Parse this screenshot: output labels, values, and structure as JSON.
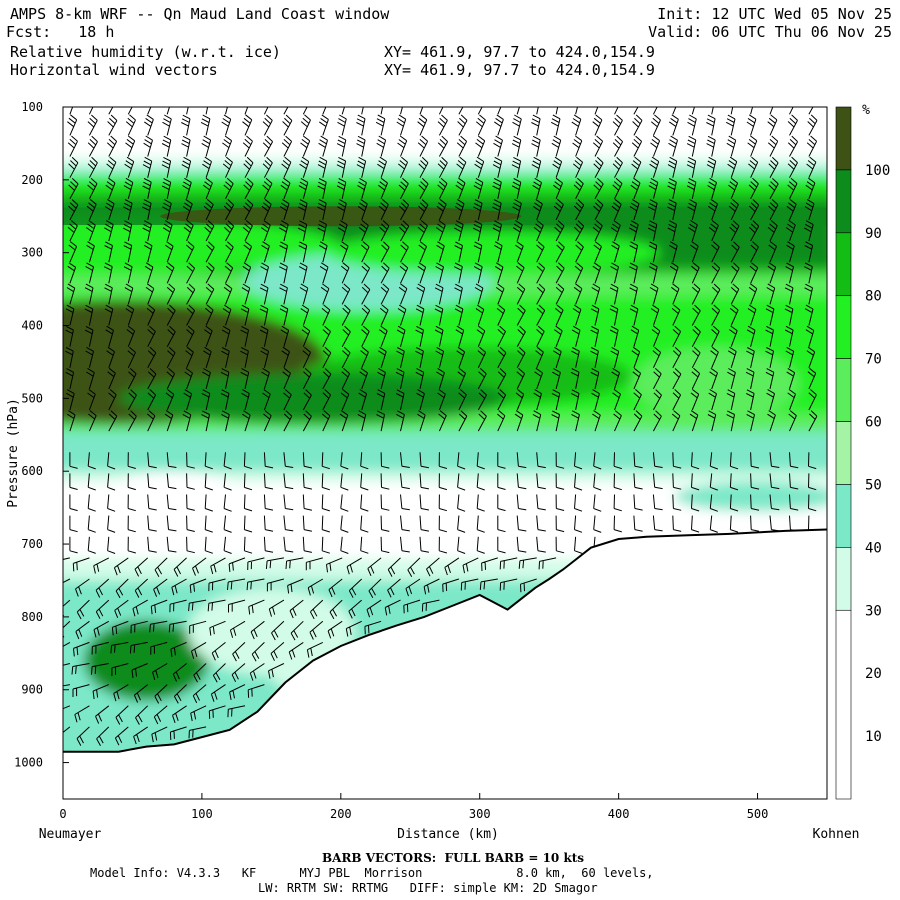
{
  "header": {
    "title": "AMPS 8-km WRF -- Qn Maud Land Coast window",
    "forecast": "Fcst:   18 h",
    "field1": "Relative humidity (w.r.t. ice)",
    "field2": "Horizontal wind vectors",
    "init": "Init: 12 UTC Wed 05 Nov 25",
    "valid": "Valid: 06 UTC Thu 06 Nov 25",
    "xy1": "XY= 461.9, 97.7 to 424.0,154.9",
    "xy2": "XY= 461.9, 97.7 to 424.0,154.9"
  },
  "footer": {
    "barb_note": "BARB VECTORS:  FULL BARB = 10 kts",
    "model_line1": "Model Info: V4.3.3   KF      MYJ PBL  Morrison             8.0 km,  60 levels,",
    "model_line2": "LW: RRTM SW: RRTMG   DIFF: simple KM: 2D Smagor"
  },
  "chart_data": {
    "type": "heatmap",
    "title": "Relative humidity (w.r.t. ice) cross-section with horizontal wind vectors",
    "xlabel": "Distance (km)",
    "ylabel": "Pressure (hPa)",
    "xlim": [
      0,
      550
    ],
    "ylim": [
      1050,
      100
    ],
    "x_ticks": [
      0,
      100,
      200,
      300,
      400,
      500
    ],
    "y_ticks": [
      100,
      200,
      300,
      400,
      500,
      600,
      700,
      800,
      900,
      1000
    ],
    "left_endpoint": "Neumayer",
    "right_endpoint": "Kohnen",
    "colorbar": {
      "unit": "%",
      "ticks": [
        10,
        20,
        30,
        40,
        50,
        60,
        70,
        80,
        90,
        100
      ],
      "bins": [
        {
          "range": [
            0,
            30
          ],
          "color": "#ffffff"
        },
        {
          "range": [
            30,
            40
          ],
          "color": "#d2fce8"
        },
        {
          "range": [
            40,
            50
          ],
          "color": "#7be8c8"
        },
        {
          "range": [
            50,
            60
          ],
          "color": "#a5f3a5"
        },
        {
          "range": [
            60,
            70
          ],
          "color": "#5ced5c"
        },
        {
          "range": [
            70,
            80
          ],
          "color": "#22f022"
        },
        {
          "range": [
            80,
            90
          ],
          "color": "#14bd14"
        },
        {
          "range": [
            90,
            100
          ],
          "color": "#0d8c1d"
        },
        {
          "range": [
            100,
            110
          ],
          "color": "#3d5214"
        }
      ]
    },
    "terrain_pressure": [
      [
        0,
        985
      ],
      [
        40,
        985
      ],
      [
        60,
        978
      ],
      [
        80,
        975
      ],
      [
        100,
        965
      ],
      [
        120,
        955
      ],
      [
        140,
        930
      ],
      [
        150,
        910
      ],
      [
        160,
        890
      ],
      [
        180,
        860
      ],
      [
        200,
        840
      ],
      [
        220,
        825
      ],
      [
        240,
        812
      ],
      [
        260,
        800
      ],
      [
        280,
        785
      ],
      [
        300,
        770
      ],
      [
        310,
        780
      ],
      [
        320,
        790
      ],
      [
        330,
        775
      ],
      [
        340,
        760
      ],
      [
        350,
        748
      ],
      [
        360,
        735
      ],
      [
        370,
        720
      ],
      [
        380,
        705
      ],
      [
        400,
        693
      ],
      [
        420,
        690
      ],
      [
        450,
        688
      ],
      [
        480,
        686
      ],
      [
        500,
        684
      ],
      [
        520,
        682
      ],
      [
        550,
        680
      ]
    ],
    "rh_regions": [
      {
        "rh": 35,
        "p_range": [
          170,
          200
        ]
      },
      {
        "rh": 75,
        "p_range": [
          190,
          240
        ]
      },
      {
        "rh": 95,
        "p_range": [
          230,
          320
        ]
      },
      {
        "rh": 105,
        "p_range": [
          240,
          260
        ]
      },
      {
        "rh": 105,
        "p_range": [
          350,
          500
        ]
      },
      {
        "rh": 75,
        "p_range": [
          500,
          580
        ]
      },
      {
        "rh": 15,
        "p_range": [
          600,
          720
        ]
      },
      {
        "rh": 45,
        "p_range": [
          730,
          850
        ]
      },
      {
        "rh": 95,
        "p_range": [
          820,
          900
        ]
      }
    ],
    "wind_barbs": "FULL BARB = 10 kts"
  }
}
